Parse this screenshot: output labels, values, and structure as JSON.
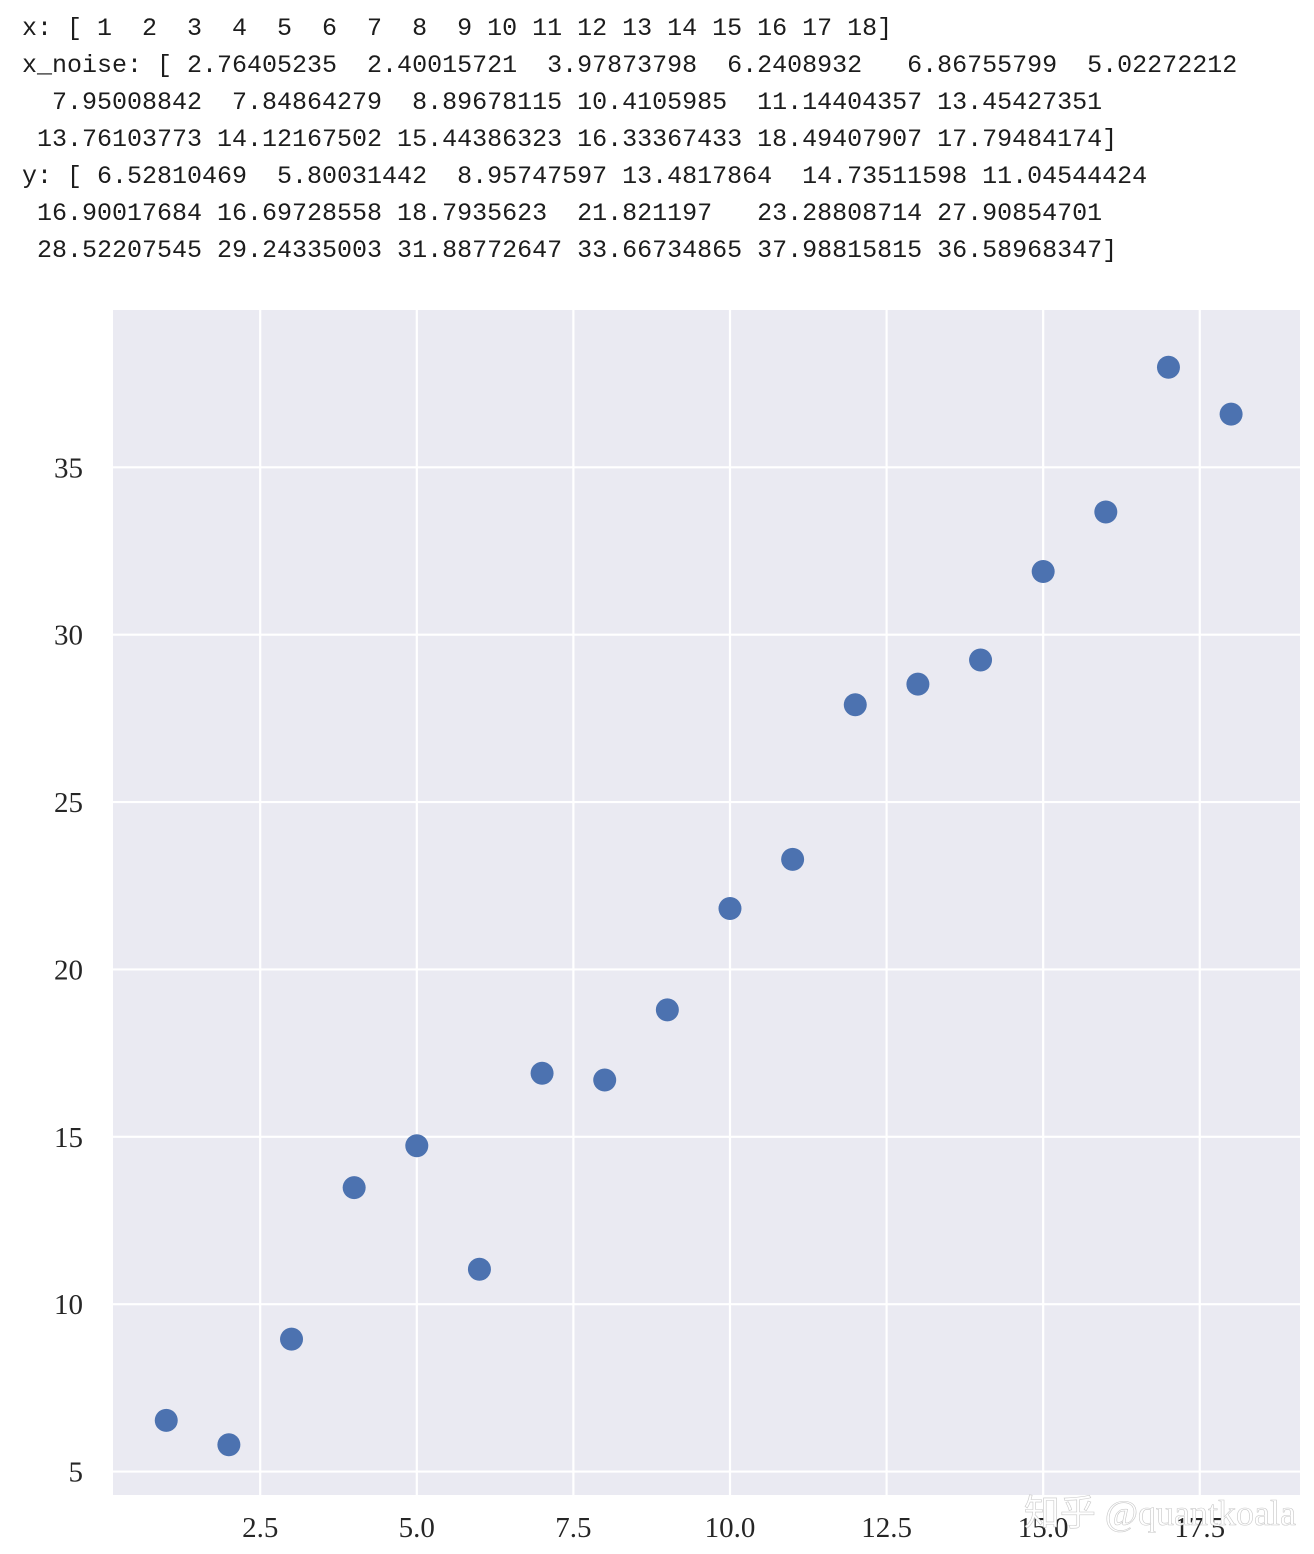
{
  "console": {
    "lines": [
      "x: [ 1  2  3  4  5  6  7  8  9 10 11 12 13 14 15 16 17 18]",
      "x_noise: [ 2.76405235  2.40015721  3.97873798  6.2408932   6.86755799  5.02272212",
      "  7.95008842  7.84864279  8.89678115 10.4105985  11.14404357 13.45427351",
      " 13.76103773 14.12167502 15.44386323 16.33367433 18.49407907 17.79484174]",
      "y: [ 6.52810469  5.80031442  8.95747597 13.4817864  14.73511598 11.04544424",
      " 16.90017684 16.69728558 18.7935623  21.821197   23.28808714 27.90854701",
      " 28.52207545 29.24335003 31.88772647 33.66734865 37.98815815 36.58968347]"
    ]
  },
  "chart_data": {
    "type": "scatter",
    "title": "",
    "xlabel": "",
    "ylabel": "",
    "x": [
      1,
      2,
      3,
      4,
      5,
      6,
      7,
      8,
      9,
      10,
      11,
      12,
      13,
      14,
      15,
      16,
      17,
      18
    ],
    "y": [
      6.52810469,
      5.80031442,
      8.95747597,
      13.4817864,
      14.73511598,
      11.04544424,
      16.90017684,
      16.69728558,
      18.7935623,
      21.821197,
      23.28808714,
      27.90854701,
      28.52207545,
      29.24335003,
      31.88772647,
      33.66734865,
      37.98815815,
      36.58968347
    ],
    "x_noise": [
      2.76405235,
      2.40015721,
      3.97873798,
      6.2408932,
      6.86755799,
      5.02272212,
      7.95008842,
      7.84864279,
      8.89678115,
      10.4105985,
      11.14404357,
      13.45427351,
      13.76103773,
      14.12167502,
      15.44386323,
      16.33367433,
      18.49407907,
      17.79484174
    ],
    "xlim": [
      0.15,
      19.1
    ],
    "ylim": [
      4.3,
      39.7
    ],
    "xtick_values": [
      2.5,
      5.0,
      7.5,
      10.0,
      12.5,
      15.0,
      17.5
    ],
    "xtick_labels": [
      "2.5",
      "5.0",
      "7.5",
      "10.0",
      "12.5",
      "15.0",
      "17.5"
    ],
    "ytick_values": [
      5,
      10,
      15,
      20,
      25,
      30,
      35
    ],
    "ytick_labels": [
      "5",
      "10",
      "15",
      "20",
      "25",
      "30",
      "35"
    ],
    "grid": true,
    "legend": false,
    "plot_bg": "#eaeaf2",
    "grid_color": "#ffffff",
    "dot_color": "#4c72b0",
    "tick_color": "#262626"
  },
  "watermark": {
    "text": "知乎 @quantkoala",
    "color": "#ffffff"
  }
}
